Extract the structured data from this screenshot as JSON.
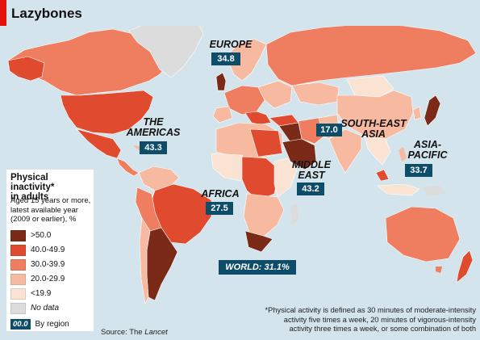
{
  "title": "Lazybones",
  "colors": {
    "ocean": "#d3e4ec",
    "over50": "#7b2a17",
    "from40": "#e04a2f",
    "from30": "#ef7d5f",
    "from20": "#f7b9a0",
    "under20": "#fbe3d3",
    "nodata": "#dcdcdc",
    "region_box": "#0d4d6a",
    "brand_red": "#e3120b"
  },
  "regions": [
    {
      "key": "europe",
      "name": "EUROPE",
      "value": "34.8"
    },
    {
      "key": "americas",
      "name": "THE AMERICAS",
      "line1": "THE",
      "line2": "AMERICAS",
      "value": "43.3"
    },
    {
      "key": "southeast_asia",
      "name": "SOUTH-EAST ASIA",
      "line1": "SOUTH-EAST",
      "line2": "ASIA",
      "value": "17.0"
    },
    {
      "key": "middle_east",
      "name": "MIDDLE EAST",
      "line1": "MIDDLE",
      "line2": "EAST",
      "value": "43.2"
    },
    {
      "key": "africa",
      "name": "AFRICA",
      "value": "27.5"
    },
    {
      "key": "asia_pacific",
      "name": "ASIA-PACIFIC",
      "line1": "ASIA-",
      "line2": "PACIFIC",
      "value": "33.7"
    }
  ],
  "world": "WORLD: 31.1%",
  "legend": {
    "title_line1": "Physical inactivity*",
    "title_line2": "in adults",
    "sub_line1": "Aged 15 years or more,",
    "sub_line2": "latest available year",
    "sub_line3": "(2009 or earlier), %",
    "items": [
      {
        "label": ">50.0",
        "color": "#7b2a17"
      },
      {
        "label": "40.0-49.9",
        "color": "#e04a2f"
      },
      {
        "label": "30.0-39.9",
        "color": "#ef7d5f"
      },
      {
        "label": "20.0-29.9",
        "color": "#f7b9a0"
      },
      {
        "label": "<19.9",
        "color": "#fbe3d3"
      },
      {
        "label": "No data",
        "color": "#dcdcdc"
      }
    ],
    "region_sample": "00.0",
    "region_label": "By region"
  },
  "footnote": {
    "line1": "*Physical activity is defined as 30 minutes of moderate-intensity",
    "line2": "activity five times a week, 20 minutes of vigorous-intensity",
    "line3": "activity three times a week, or some combination of both"
  },
  "source": {
    "prefix": "Source: The ",
    "name": "Lancet"
  }
}
